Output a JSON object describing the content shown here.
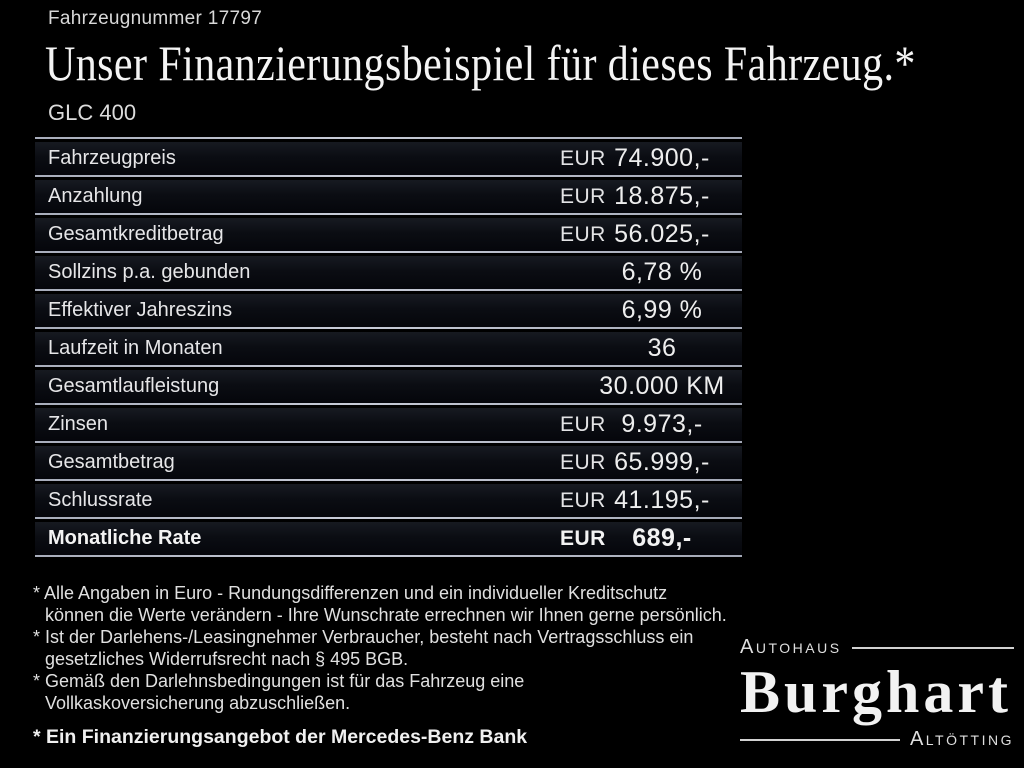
{
  "header": {
    "vehicle_number": "Fahrzeugnummer 17797",
    "title": "Unser Finanzierungsbeispiel für dieses Fahrzeug.*",
    "model": "GLC 400"
  },
  "table": {
    "rows": [
      {
        "label": "Fahrzeugpreis",
        "currency": "EUR",
        "value": "74.900,-"
      },
      {
        "label": "Anzahlung",
        "currency": "EUR",
        "value": "18.875,-"
      },
      {
        "label": "Gesamtkreditbetrag",
        "currency": "EUR",
        "value": "56.025,-"
      },
      {
        "label": "Sollzins p.a. gebunden",
        "currency": "",
        "value": "6,78 %"
      },
      {
        "label": "Effektiver Jahreszins",
        "currency": "",
        "value": "6,99 %"
      },
      {
        "label": "Laufzeit in Monaten",
        "currency": "",
        "value": "36"
      },
      {
        "label": "Gesamtlaufleistung",
        "currency": "",
        "value": "30.000 KM"
      },
      {
        "label": "Zinsen",
        "currency": "EUR",
        "value": "9.973,-"
      },
      {
        "label": "Gesamtbetrag",
        "currency": "EUR",
        "value": "65.999,-"
      },
      {
        "label": "Schlussrate",
        "currency": "EUR",
        "value": "41.195,-"
      },
      {
        "label": "Monatliche Rate",
        "currency": "EUR",
        "value": "689,-"
      }
    ]
  },
  "footnotes": [
    {
      "lines": [
        "* Alle Angaben in Euro - Rundungsdifferenzen und ein individueller Kreditschutz",
        "können die Werte verändern - Ihre Wunschrate errechnen wir Ihnen gerne persönlich."
      ]
    },
    {
      "lines": [
        "* Ist der Darlehens-/Leasingnehmer Verbraucher, besteht nach Vertragsschluss ein",
        "gesetzliches Widerrufsrecht nach § 495 BGB."
      ]
    },
    {
      "lines": [
        "* Gemäß den Darlehnsbedingungen ist für das Fahrzeug eine",
        "Vollkaskoversicherung abzuschließen."
      ]
    }
  ],
  "financing_note": "* Ein Finanzierungsangebot der Mercedes-Benz Bank",
  "dealer": {
    "top_label": "Autohaus",
    "name": "Burghart",
    "city": "Altötting"
  },
  "colors": {
    "background": "#000000",
    "row_band_top": "#171a21",
    "row_separator": "#b6bac6",
    "text": "#e6e6e6"
  }
}
